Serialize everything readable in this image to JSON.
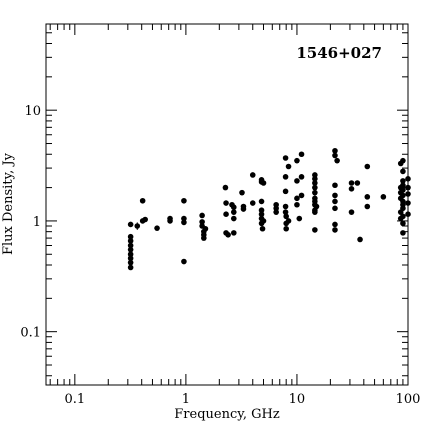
{
  "chart_data": {
    "type": "scatter",
    "title": "1546+027",
    "xlabel": "Frequency, GHz",
    "ylabel": "Flux Density, Jy",
    "xscale": "log",
    "yscale": "log",
    "xlim": [
      0.055,
      100
    ],
    "ylim": [
      0.033,
      60
    ],
    "grid": false,
    "legend": "none",
    "x_ticks": [
      {
        "value": 0.1,
        "label": "0.1"
      },
      {
        "value": 1,
        "label": "1"
      },
      {
        "value": 10,
        "label": "10"
      },
      {
        "value": 100,
        "label": "100"
      }
    ],
    "y_ticks": [
      {
        "value": 0.1,
        "label": "0.1"
      },
      {
        "value": 1,
        "label": "1"
      },
      {
        "value": 10,
        "label": "10"
      }
    ],
    "marker_color": "#000000",
    "series": [
      {
        "points": [
          [
            0.318,
            0.93
          ],
          [
            0.318,
            0.72
          ],
          [
            0.318,
            0.66
          ],
          [
            0.318,
            0.6
          ],
          [
            0.318,
            0.55
          ],
          [
            0.318,
            0.5
          ],
          [
            0.318,
            0.46
          ],
          [
            0.318,
            0.42
          ],
          [
            0.318,
            0.38
          ],
          [
            0.365,
            0.9
          ],
          [
            0.408,
            1.52
          ],
          [
            0.408,
            1.0
          ],
          [
            0.43,
            1.03
          ],
          [
            0.55,
            0.86
          ],
          [
            0.72,
            1.05
          ],
          [
            0.72,
            1.0
          ],
          [
            0.96,
            1.52
          ],
          [
            0.96,
            1.05
          ],
          [
            0.96,
            0.97
          ],
          [
            0.96,
            0.43
          ],
          [
            1.4,
            1.12
          ],
          [
            1.4,
            0.98
          ],
          [
            1.4,
            0.9
          ],
          [
            1.45,
            0.8
          ],
          [
            1.45,
            0.75
          ],
          [
            1.45,
            0.7
          ],
          [
            1.5,
            0.85
          ],
          [
            2.27,
            2.0
          ],
          [
            2.3,
            1.45
          ],
          [
            2.3,
            1.15
          ],
          [
            2.3,
            0.78
          ],
          [
            2.4,
            0.75
          ],
          [
            2.6,
            1.4
          ],
          [
            2.7,
            1.33
          ],
          [
            2.7,
            1.2
          ],
          [
            2.7,
            1.05
          ],
          [
            2.7,
            0.78
          ],
          [
            3.2,
            1.8
          ],
          [
            3.3,
            1.35
          ],
          [
            3.3,
            1.28
          ],
          [
            4.0,
            2.6
          ],
          [
            4.0,
            1.45
          ],
          [
            4.8,
            2.35
          ],
          [
            4.8,
            2.25
          ],
          [
            4.8,
            1.5
          ],
          [
            4.8,
            1.25
          ],
          [
            4.8,
            1.15
          ],
          [
            4.8,
            1.05
          ],
          [
            4.8,
            0.95
          ],
          [
            4.9,
            0.85
          ],
          [
            5.0,
            2.2
          ],
          [
            5.0,
            1.0
          ],
          [
            6.5,
            1.4
          ],
          [
            6.5,
            1.3
          ],
          [
            6.5,
            1.2
          ],
          [
            7.9,
            3.7
          ],
          [
            7.9,
            2.5
          ],
          [
            7.9,
            1.85
          ],
          [
            7.9,
            1.35
          ],
          [
            7.9,
            1.2
          ],
          [
            8.0,
            1.1
          ],
          [
            8.0,
            0.95
          ],
          [
            8.0,
            0.85
          ],
          [
            8.4,
            3.1
          ],
          [
            8.4,
            1.0
          ],
          [
            10.0,
            3.5
          ],
          [
            10.0,
            2.3
          ],
          [
            10.0,
            1.6
          ],
          [
            10.0,
            1.4
          ],
          [
            10.5,
            1.05
          ],
          [
            11.0,
            4.0
          ],
          [
            11.0,
            2.5
          ],
          [
            11.0,
            1.7
          ],
          [
            14.5,
            2.6
          ],
          [
            14.5,
            2.4
          ],
          [
            14.5,
            2.2
          ],
          [
            14.5,
            2.0
          ],
          [
            14.5,
            1.8
          ],
          [
            14.5,
            1.6
          ],
          [
            14.5,
            1.5
          ],
          [
            14.5,
            1.4
          ],
          [
            14.5,
            1.25
          ],
          [
            14.5,
            1.2
          ],
          [
            14.5,
            0.83
          ],
          [
            15.0,
            1.35
          ],
          [
            22.0,
            4.3
          ],
          [
            22.0,
            3.9
          ],
          [
            22.0,
            2.1
          ],
          [
            22.0,
            1.7
          ],
          [
            22.0,
            1.5
          ],
          [
            22.0,
            1.3
          ],
          [
            22.0,
            0.93
          ],
          [
            22.0,
            0.83
          ],
          [
            23.0,
            3.5
          ],
          [
            31.0,
            2.2
          ],
          [
            31.0,
            1.95
          ],
          [
            31.0,
            1.2
          ],
          [
            35.0,
            2.2
          ],
          [
            37.0,
            0.68
          ],
          [
            43.0,
            3.1
          ],
          [
            43.0,
            1.65
          ],
          [
            43.0,
            1.35
          ],
          [
            60.0,
            1.65
          ],
          [
            86.0,
            3.3
          ],
          [
            86.0,
            2.0
          ],
          [
            86.0,
            1.8
          ],
          [
            86.0,
            1.6
          ],
          [
            86.0,
            1.2
          ],
          [
            86.0,
            1.05
          ],
          [
            90.0,
            3.5
          ],
          [
            90.0,
            2.8
          ],
          [
            90.0,
            2.3
          ],
          [
            90.0,
            2.1
          ],
          [
            90.0,
            1.9
          ],
          [
            90.0,
            1.7
          ],
          [
            90.0,
            1.5
          ],
          [
            90.0,
            1.4
          ],
          [
            90.0,
            1.3
          ],
          [
            90.0,
            1.1
          ],
          [
            90.0,
            0.95
          ],
          [
            90.0,
            0.78
          ],
          [
            100.0,
            2.4
          ],
          [
            100.0,
            2.0
          ],
          [
            100.0,
            1.75
          ],
          [
            100.0,
            1.45
          ],
          [
            100.0,
            1.15
          ]
        ],
        "error_bars": [
          {
            "x": 0.365,
            "y": 0.9,
            "low": 0.83,
            "high": 0.97
          }
        ]
      }
    ]
  }
}
